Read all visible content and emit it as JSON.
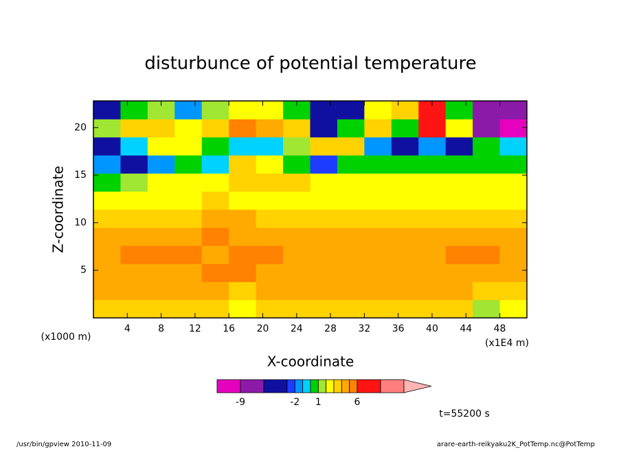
{
  "chart_data": {
    "type": "contour",
    "title": "disturbunce of potential temperature",
    "x_label": "X-coordinate",
    "y_label": "Z-coordinate",
    "x_unit": "(x1E4 m)",
    "y_unit": "(x1000 m)",
    "time_label": "t=55200 s",
    "footer_left": "/usr/bin/gpview  2010-11-09",
    "footer_right": "arare-earth-reikyaku2K_PotTemp.nc@PotTemp",
    "xlim": [
      0,
      51.2
    ],
    "ylim": [
      0,
      22.8
    ],
    "xticks": [
      4,
      8,
      12,
      16,
      20,
      24,
      28,
      32,
      36,
      40,
      44,
      48
    ],
    "yticks": [
      5,
      10,
      15,
      20
    ],
    "x": [
      1.6,
      4.8,
      8,
      11.2,
      14.4,
      17.6,
      20.8,
      24,
      27.2,
      30.4,
      33.6,
      36.8,
      40,
      43.2,
      46.4,
      49.6
    ],
    "y": [
      0.95,
      2.85,
      4.75,
      6.65,
      8.55,
      10.45,
      12.35,
      14.25,
      16.15,
      18.05,
      19.95,
      21.85
    ],
    "z": [
      [
        3.5,
        3.5,
        3.5,
        3.5,
        3.5,
        2.5,
        3.5,
        3.5,
        3.5,
        3.5,
        3.5,
        3.5,
        3.5,
        3.5,
        1.5,
        2.5
      ],
      [
        4.5,
        4.5,
        4.5,
        4.5,
        4.5,
        3.5,
        4.5,
        4.5,
        4.5,
        4.5,
        4.5,
        4.5,
        4.5,
        4.5,
        3.5,
        3.5
      ],
      [
        4.5,
        4.5,
        4.5,
        4.5,
        5.5,
        5.5,
        4.5,
        4.5,
        4.5,
        4.5,
        4.5,
        4.5,
        4.5,
        4.5,
        4.5,
        4.5
      ],
      [
        4.5,
        5.5,
        5.5,
        5.5,
        4.5,
        5.5,
        5.5,
        4.5,
        4.5,
        4.5,
        4.5,
        4.5,
        4.5,
        5.5,
        5.5,
        4.5
      ],
      [
        4.5,
        4.5,
        4.5,
        4.5,
        5.5,
        4.5,
        4.5,
        4.5,
        4.5,
        4.5,
        4.5,
        4.5,
        4.5,
        4.5,
        4.5,
        4.5
      ],
      [
        3.5,
        3.5,
        3.5,
        3.5,
        4.5,
        4.5,
        3.5,
        3.5,
        3.5,
        3.5,
        3.5,
        3.5,
        3.5,
        3.5,
        3.5,
        3.5
      ],
      [
        2.5,
        2.5,
        2.5,
        2.5,
        3.5,
        2.5,
        2.5,
        2.5,
        2.5,
        2.5,
        2.5,
        2.5,
        2.5,
        2.5,
        2.5,
        2.5
      ],
      [
        0.5,
        1.5,
        2.5,
        2.5,
        2.5,
        3.5,
        3.5,
        3.5,
        2.5,
        2.5,
        2.5,
        2.5,
        2.5,
        2.5,
        2.5,
        2.5
      ],
      [
        -1.5,
        -3.5,
        -1.5,
        0.5,
        -0.5,
        3.5,
        2.5,
        0.5,
        -2.5,
        0.5,
        0.5,
        0.5,
        0.5,
        0.5,
        0.5,
        0.5
      ],
      [
        -3.5,
        -0.5,
        2.5,
        2.5,
        0.5,
        -0.5,
        -0.5,
        1.5,
        3.5,
        3.5,
        -1.5,
        -3.5,
        -1.5,
        -4.5,
        0.5,
        -0.5
      ],
      [
        1.5,
        3.5,
        3.5,
        2.5,
        3.5,
        5.5,
        4.5,
        3.5,
        -4.5,
        0.5,
        3.5,
        0.5,
        6.5,
        2.5,
        -7.5,
        -9.5
      ],
      [
        -3.5,
        0.5,
        1.5,
        -1.5,
        1.5,
        2.5,
        2.5,
        0.5,
        -4.5,
        -4.5,
        2.5,
        3.5,
        6.5,
        0.5,
        -7.5,
        -7.5
      ]
    ],
    "colorbar": {
      "levels": [
        -12,
        -9,
        -6,
        -3,
        -2,
        -1,
        0,
        1,
        2,
        3,
        4,
        5,
        6,
        9,
        12
      ],
      "colors": [
        "#e600c0",
        "#8c1aa8",
        "#1010a0",
        "#1e3cff",
        "#0096ff",
        "#00d2ff",
        "#00d200",
        "#a0e632",
        "#ffff00",
        "#ffd200",
        "#ffaa00",
        "#ff8200",
        "#ff1414",
        "#ff7f7f"
      ],
      "over_color": "#ffb4b4",
      "ticks": [
        -9,
        -2,
        1,
        6
      ]
    }
  }
}
